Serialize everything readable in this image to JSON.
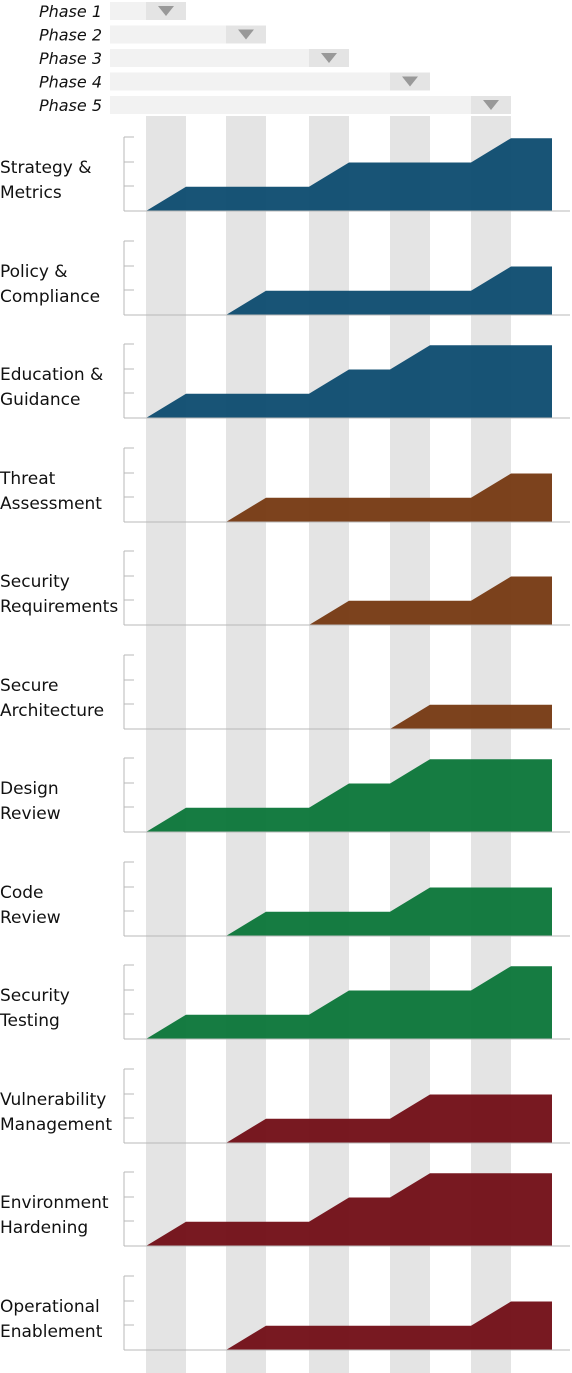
{
  "chart_data": {
    "type": "area",
    "phases": [
      "Phase 1",
      "Phase 2",
      "Phase 3",
      "Phase 4",
      "Phase 5"
    ],
    "phase_column_color": "#e4e4e4",
    "phase_bar_color": "#f2f2f2",
    "marker_color": "#999999",
    "y_max": 3,
    "rows": [
      {
        "label": [
          "Strategy &",
          "Metrics"
        ],
        "color": "#0f4d70",
        "levels": [
          1,
          1,
          2,
          2,
          3
        ]
      },
      {
        "label": [
          "Policy &",
          "Compliance"
        ],
        "color": "#0f4d70",
        "levels": [
          0,
          1,
          1,
          1,
          2
        ]
      },
      {
        "label": [
          "Education &",
          "Guidance"
        ],
        "color": "#0f4d70",
        "levels": [
          1,
          1,
          2,
          3,
          3
        ]
      },
      {
        "label": [
          "Threat",
          "Assessment"
        ],
        "color": "#773a14",
        "levels": [
          0,
          1,
          1,
          1,
          2
        ]
      },
      {
        "label": [
          "Security",
          "Requirements"
        ],
        "color": "#773a14",
        "levels": [
          0,
          0,
          1,
          1,
          2
        ]
      },
      {
        "label": [
          "Secure",
          "Architecture"
        ],
        "color": "#773a14",
        "levels": [
          0,
          0,
          0,
          1,
          1
        ]
      },
      {
        "label": [
          "Design",
          "Review"
        ],
        "color": "#0d773a",
        "levels": [
          1,
          1,
          2,
          3,
          3
        ]
      },
      {
        "label": [
          "Code",
          "Review"
        ],
        "color": "#0d773a",
        "levels": [
          0,
          1,
          1,
          2,
          2
        ]
      },
      {
        "label": [
          "Security",
          "Testing"
        ],
        "color": "#0d773a",
        "levels": [
          1,
          1,
          2,
          2,
          3
        ]
      },
      {
        "label": [
          "Vulnerability",
          "Management"
        ],
        "color": "#721018",
        "levels": [
          0,
          1,
          1,
          2,
          2
        ]
      },
      {
        "label": [
          "Environment",
          "Hardening"
        ],
        "color": "#721018",
        "levels": [
          1,
          1,
          2,
          3,
          3
        ]
      },
      {
        "label": [
          "Operational",
          "Enablement"
        ],
        "color": "#721018",
        "levels": [
          0,
          1,
          1,
          1,
          2
        ]
      }
    ]
  }
}
